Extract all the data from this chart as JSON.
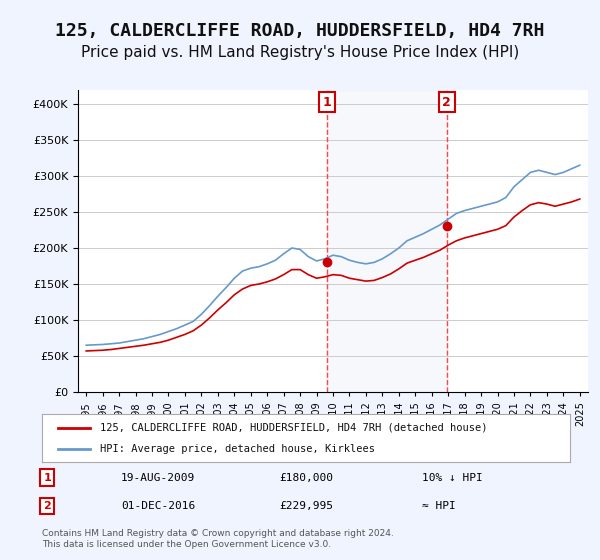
{
  "title": "125, CALDERCLIFFE ROAD, HUDDERSFIELD, HD4 7RH",
  "subtitle": "Price paid vs. HM Land Registry's House Price Index (HPI)",
  "title_fontsize": 13,
  "subtitle_fontsize": 11,
  "background_color": "#f0f4ff",
  "plot_bg_color": "#ffffff",
  "ylim": [
    0,
    420000
  ],
  "yticks": [
    0,
    50000,
    100000,
    150000,
    200000,
    250000,
    300000,
    350000,
    400000
  ],
  "xlabel": "",
  "ylabel": "",
  "legend_label_red": "125, CALDERCLIFFE ROAD, HUDDERSFIELD, HD4 7RH (detached house)",
  "legend_label_blue": "HPI: Average price, detached house, Kirklees",
  "transaction1_date": "19-AUG-2009",
  "transaction1_price": "£180,000",
  "transaction1_note": "10% ↓ HPI",
  "transaction2_date": "01-DEC-2016",
  "transaction2_price": "£229,995",
  "transaction2_note": "≈ HPI",
  "footnote": "Contains HM Land Registry data © Crown copyright and database right 2024.\nThis data is licensed under the Open Government Licence v3.0.",
  "vline1_x": 2009.64,
  "vline2_x": 2016.92,
  "marker1_x": 2009.64,
  "marker1_y": 180000,
  "marker2_x": 2016.92,
  "marker2_y": 229995,
  "hpi_color": "#6699cc",
  "price_color": "#cc0000",
  "vline_color": "#ff4444",
  "marker_color": "#cc0000",
  "hpi_data_x": [
    1995,
    1995.5,
    1996,
    1996.5,
    1997,
    1997.5,
    1998,
    1998.5,
    1999,
    1999.5,
    2000,
    2000.5,
    2001,
    2001.5,
    2002,
    2002.5,
    2003,
    2003.5,
    2004,
    2004.5,
    2005,
    2005.5,
    2006,
    2006.5,
    2007,
    2007.5,
    2008,
    2008.5,
    2009,
    2009.5,
    2010,
    2010.5,
    2011,
    2011.5,
    2012,
    2012.5,
    2013,
    2013.5,
    2014,
    2014.5,
    2015,
    2015.5,
    2016,
    2016.5,
    2017,
    2017.5,
    2018,
    2018.5,
    2019,
    2019.5,
    2020,
    2020.5,
    2021,
    2021.5,
    2022,
    2022.5,
    2023,
    2023.5,
    2024,
    2024.5,
    2025
  ],
  "hpi_data_y": [
    65000,
    65500,
    66000,
    67000,
    68000,
    70000,
    72000,
    74000,
    77000,
    80000,
    84000,
    88000,
    93000,
    98000,
    108000,
    120000,
    133000,
    145000,
    158000,
    168000,
    172000,
    174000,
    178000,
    183000,
    192000,
    200000,
    198000,
    188000,
    182000,
    185000,
    190000,
    188000,
    183000,
    180000,
    178000,
    180000,
    185000,
    192000,
    200000,
    210000,
    215000,
    220000,
    226000,
    232000,
    240000,
    248000,
    252000,
    255000,
    258000,
    261000,
    264000,
    270000,
    285000,
    295000,
    305000,
    308000,
    305000,
    302000,
    305000,
    310000,
    315000
  ],
  "price_data_x": [
    1995,
    1995.5,
    1996,
    1996.5,
    1997,
    1997.5,
    1998,
    1998.5,
    1999,
    1999.5,
    2000,
    2000.5,
    2001,
    2001.5,
    2002,
    2002.5,
    2003,
    2003.5,
    2004,
    2004.5,
    2005,
    2005.5,
    2006,
    2006.5,
    2007,
    2007.5,
    2008,
    2008.5,
    2009,
    2009.5,
    2010,
    2010.5,
    2011,
    2011.5,
    2012,
    2012.5,
    2013,
    2013.5,
    2014,
    2014.5,
    2015,
    2015.5,
    2016,
    2016.5,
    2017,
    2017.5,
    2018,
    2018.5,
    2019,
    2019.5,
    2020,
    2020.5,
    2021,
    2021.5,
    2022,
    2022.5,
    2023,
    2023.5,
    2024,
    2024.5,
    2025
  ],
  "price_data_y": [
    57000,
    57500,
    58000,
    59000,
    60500,
    62000,
    63500,
    65000,
    67000,
    69000,
    72000,
    76000,
    80000,
    85000,
    93000,
    103000,
    114000,
    124000,
    135000,
    143000,
    148000,
    150000,
    153000,
    157000,
    163000,
    170000,
    170000,
    163000,
    158000,
    160000,
    163000,
    162000,
    158000,
    156000,
    154000,
    155000,
    159000,
    164000,
    171000,
    179000,
    183000,
    187000,
    192000,
    197000,
    204000,
    210000,
    214000,
    217000,
    220000,
    223000,
    226000,
    231000,
    243000,
    252000,
    260000,
    263000,
    261000,
    258000,
    261000,
    264000,
    268000
  ],
  "xtick_years": [
    1995,
    1996,
    1997,
    1998,
    1999,
    2000,
    2001,
    2002,
    2003,
    2004,
    2005,
    2006,
    2007,
    2008,
    2009,
    2010,
    2011,
    2012,
    2013,
    2014,
    2015,
    2016,
    2017,
    2018,
    2019,
    2020,
    2021,
    2022,
    2023,
    2024,
    2025
  ]
}
